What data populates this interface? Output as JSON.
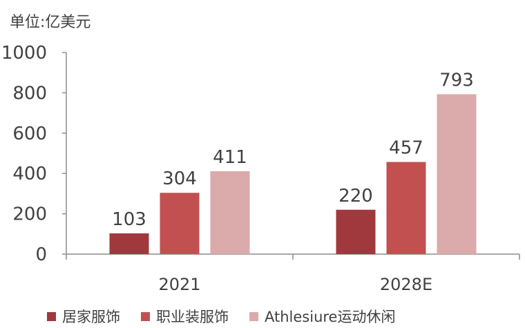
{
  "unit_label": "单位:亿美元",
  "chart_data": {
    "type": "bar",
    "categories": [
      "2021",
      "2028E"
    ],
    "series": [
      {
        "name": "居家服饰",
        "values": [
          103,
          220
        ],
        "color": "#A0393D"
      },
      {
        "name": "职业装服饰",
        "values": [
          304,
          457
        ],
        "color": "#C35050"
      },
      {
        "name": "Athlesiure运动休闲",
        "values": [
          411,
          793
        ],
        "color": "#DBAAAA"
      }
    ],
    "ylim": [
      0,
      1000
    ],
    "yticks": [
      0,
      200,
      400,
      600,
      800,
      1000
    ],
    "grid": false,
    "legend_position": "bottom",
    "data_labels": true
  }
}
